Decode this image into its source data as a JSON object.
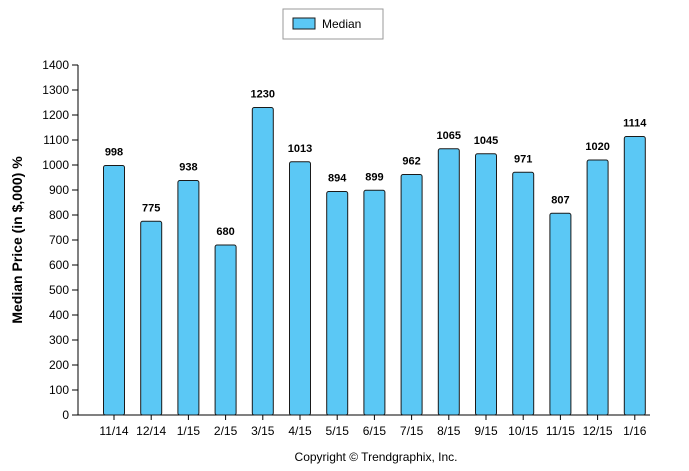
{
  "chart_data": {
    "type": "bar",
    "categories": [
      "11/14",
      "12/14",
      "1/15",
      "2/15",
      "3/15",
      "4/15",
      "5/15",
      "6/15",
      "7/15",
      "8/15",
      "9/15",
      "10/15",
      "11/15",
      "12/15",
      "1/16"
    ],
    "series": [
      {
        "name": "Median",
        "values": [
          998,
          775,
          938,
          680,
          1230,
          1013,
          894,
          899,
          962,
          1065,
          1045,
          971,
          807,
          1020,
          1114
        ]
      }
    ],
    "data_labels": [
      "998",
      "775",
      "938",
      "680",
      "1230",
      "1013",
      "894",
      "899",
      "962",
      "1065",
      "1045",
      "971",
      "807",
      "1020",
      "1114"
    ],
    "ylabel": "Median Price (in $,000) %",
    "ylim": [
      0,
      1400
    ],
    "yticks": [
      0,
      100,
      200,
      300,
      400,
      500,
      600,
      700,
      800,
      900,
      1000,
      1100,
      1200,
      1300,
      1400
    ],
    "legend_position": "top-center",
    "grid": false
  },
  "colors": {
    "bar_fill": "#5bc8f5",
    "bar_stroke": "#1a1a1a",
    "axis": "#000000"
  },
  "footer": {
    "copyright": "Copyright © Trendgraphix, Inc."
  }
}
